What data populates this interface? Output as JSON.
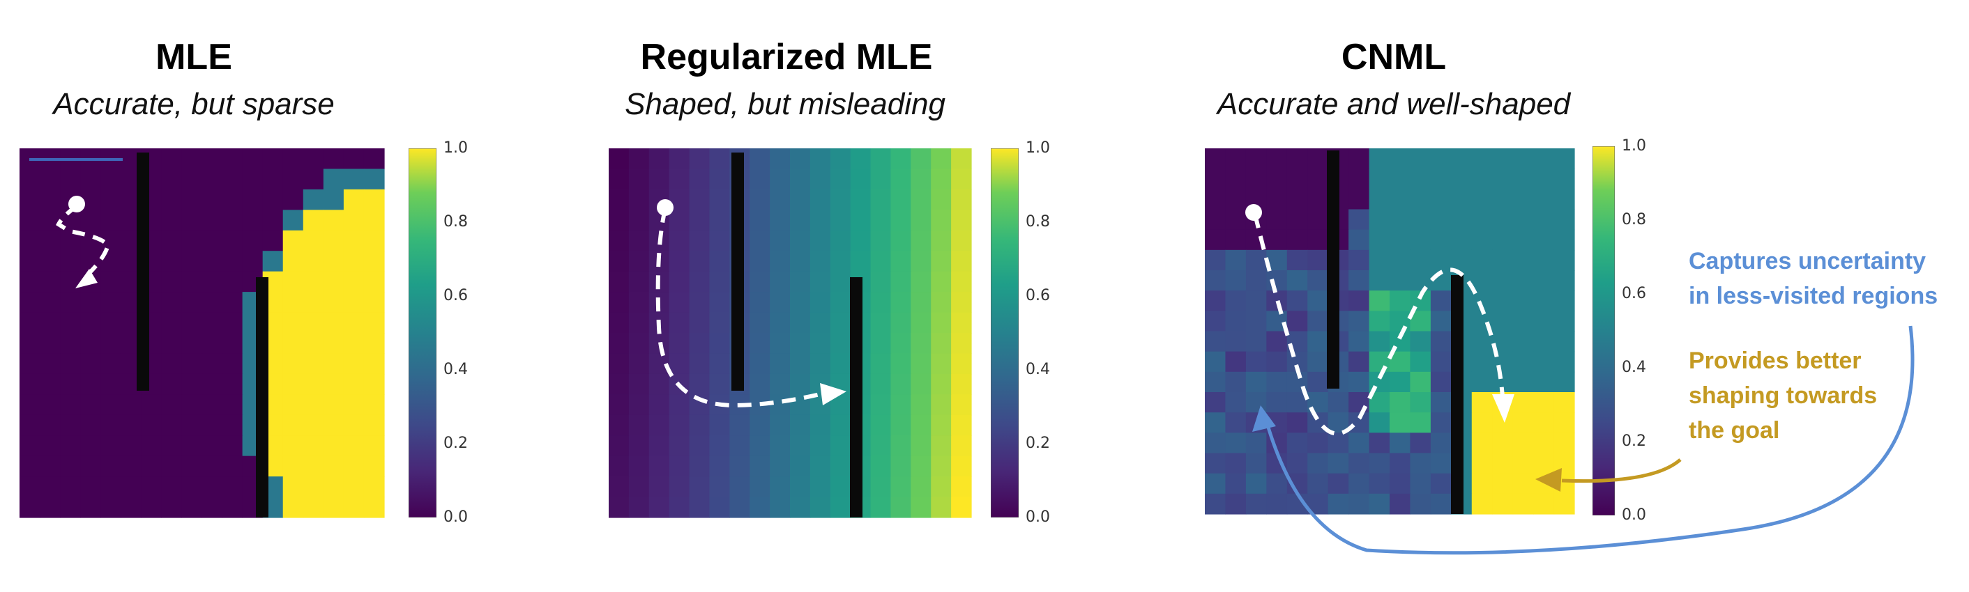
{
  "panels": [
    {
      "id": "mle",
      "title": "MLE",
      "subtitle": "Accurate, but sparse",
      "colorbar_ticks": [
        "1.0",
        "0.8",
        "0.6",
        "0.4",
        "0.2",
        "0.0"
      ]
    },
    {
      "id": "regularized",
      "title": "Regularized MLE",
      "subtitle": "Shaped, but misleading",
      "colorbar_ticks": [
        "1.0",
        "0.8",
        "0.6",
        "0.4",
        "0.2",
        "0.0"
      ]
    },
    {
      "id": "cnml",
      "title": "CNML",
      "subtitle": "Accurate and well-shaped",
      "colorbar_ticks": [
        "1.0",
        "0.8",
        "0.6",
        "0.4",
        "0.2",
        "0.0"
      ]
    }
  ],
  "annotations": {
    "uncertainty_line1": "Captures uncertainty",
    "uncertainty_line2": "in less-visited regions",
    "shaping_line1": "Provides better",
    "shaping_line2": "shaping towards",
    "shaping_line3": "the goal"
  },
  "colors": {
    "uncertainty": "#5b8fd6",
    "shaping": "#c49a22",
    "wall": "#0a0a0a",
    "path": "#ffffff"
  },
  "colormap": "viridis"
}
